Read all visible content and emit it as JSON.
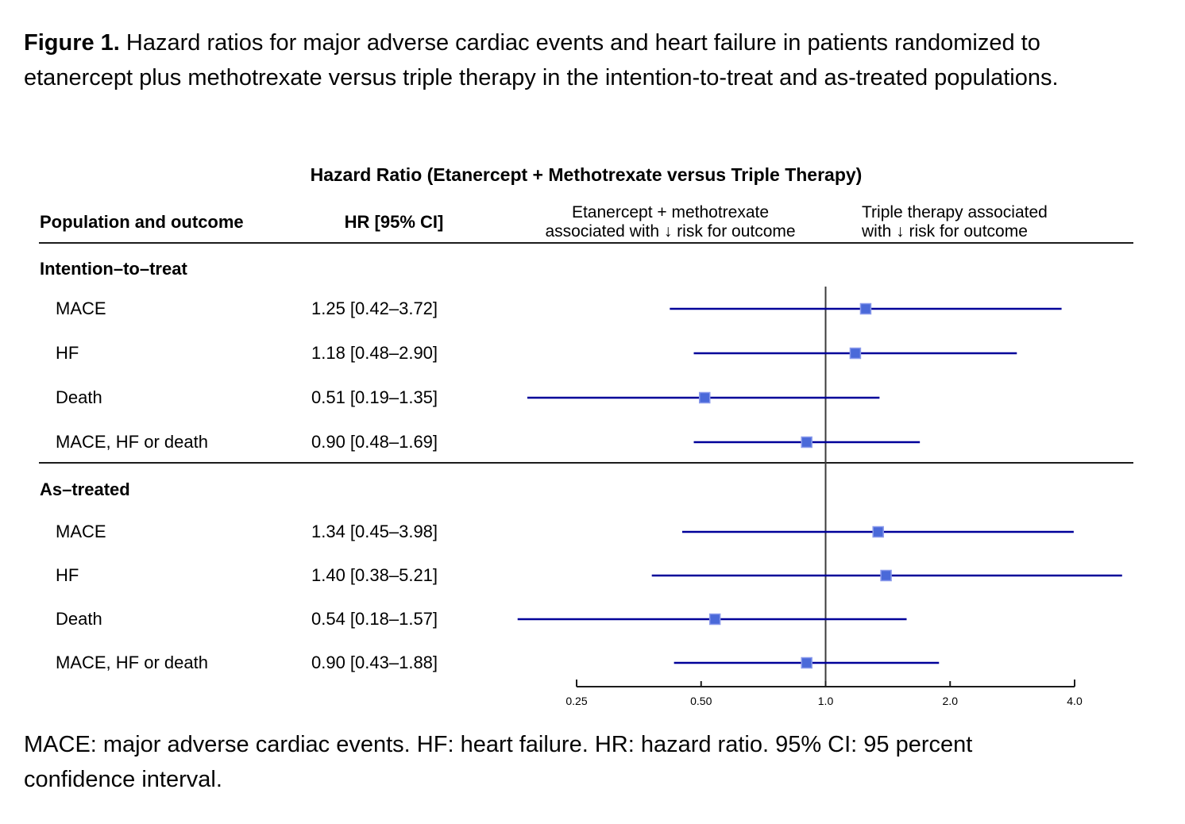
{
  "figure": {
    "caption_prefix": "Figure 1.",
    "caption_text": " Hazard ratios for major adverse cardiac events and heart failure in patients randomized to etanercept plus methotrexate versus triple therapy in the intention-to-treat and as-treated populations.",
    "footnote": "MACE: major adverse cardiac events. HF: heart failure. HR: hazard ratio. 95% CI: 95 percent confidence interval."
  },
  "table": {
    "title": "Hazard Ratio (Etanercept + Methotrexate versus Triple Therapy)",
    "col_population": "Population and outcome",
    "col_hr": "HR [95% CI]",
    "col_left_line1": "Etanercept + methotrexate",
    "col_left_line2": "associated with ↓ risk for outcome",
    "col_right_line1": "Triple therapy associated",
    "col_right_line2": "with ↓ risk for outcome"
  },
  "sections": [
    {
      "header": "Intention–to–treat",
      "rows": [
        {
          "label": "MACE",
          "hr_text": "1.25 [0.42–3.72]",
          "hr": 1.25,
          "lo": 0.42,
          "hi": 3.72
        },
        {
          "label": "HF",
          "hr_text": "1.18 [0.48–2.90]",
          "hr": 1.18,
          "lo": 0.48,
          "hi": 2.9
        },
        {
          "label": "Death",
          "hr_text": "0.51 [0.19–1.35]",
          "hr": 0.51,
          "lo": 0.19,
          "hi": 1.35
        },
        {
          "label": "MACE, HF or death",
          "hr_text": "0.90 [0.48–1.69]",
          "hr": 0.9,
          "lo": 0.48,
          "hi": 1.69
        }
      ]
    },
    {
      "header": "As–treated",
      "rows": [
        {
          "label": "MACE",
          "hr_text": "1.34 [0.45–3.98]",
          "hr": 1.34,
          "lo": 0.45,
          "hi": 3.98
        },
        {
          "label": "HF",
          "hr_text": "1.40 [0.38–5.21]",
          "hr": 1.4,
          "lo": 0.38,
          "hi": 5.21
        },
        {
          "label": "Death",
          "hr_text": "0.54 [0.18–1.57]",
          "hr": 0.54,
          "lo": 0.18,
          "hi": 1.57
        },
        {
          "label": "MACE, HF or death",
          "hr_text": "0.90 [0.43–1.88]",
          "hr": 0.9,
          "lo": 0.43,
          "hi": 1.88
        }
      ]
    }
  ],
  "chart_data": {
    "type": "forest",
    "title": "Hazard Ratio (Etanercept + Methotrexate versus Triple Therapy)",
    "x_scale": "log2",
    "x_ticks": [
      0.25,
      0.5,
      1.0,
      2.0,
      4.0
    ],
    "x_tick_labels": [
      "0.25",
      "0.50",
      "1.0",
      "2.0",
      "4.0"
    ],
    "x_range_values": [
      0.25,
      4.0
    ],
    "reference_line_value": 1.0,
    "series": [
      {
        "name": "Intention–to–treat",
        "rows": [
          {
            "label": "MACE",
            "hr": 1.25,
            "lo": 0.42,
            "hi": 3.72
          },
          {
            "label": "HF",
            "hr": 1.18,
            "lo": 0.48,
            "hi": 2.9
          },
          {
            "label": "Death",
            "hr": 0.51,
            "lo": 0.19,
            "hi": 1.35
          },
          {
            "label": "MACE, HF or death",
            "hr": 0.9,
            "lo": 0.48,
            "hi": 1.69
          }
        ]
      },
      {
        "name": "As–treated",
        "rows": [
          {
            "label": "MACE",
            "hr": 1.34,
            "lo": 0.45,
            "hi": 3.98
          },
          {
            "label": "HF",
            "hr": 1.4,
            "lo": 0.38,
            "hi": 5.21
          },
          {
            "label": "Death",
            "hr": 0.54,
            "lo": 0.18,
            "hi": 1.57
          },
          {
            "label": "MACE, HF or death",
            "hr": 0.9,
            "lo": 0.43,
            "hi": 1.88
          }
        ]
      }
    ],
    "colors": {
      "marker_fill": "#4a69d9",
      "marker_border": "#8a9aec",
      "ci_line": "#000099",
      "reference_line": "#3c3c3c",
      "axis": "#1c1c1c"
    }
  }
}
